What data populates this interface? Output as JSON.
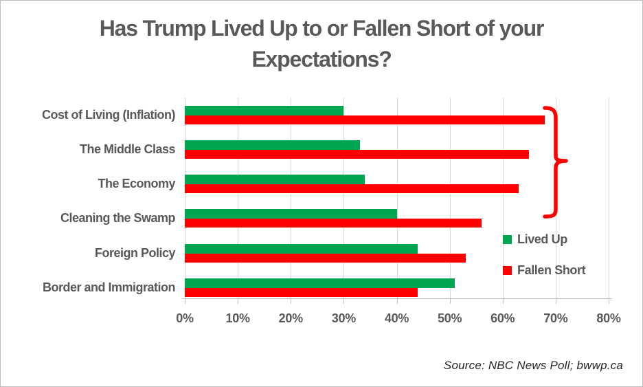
{
  "title": "Has Trump Lived Up to or Fallen Short of your Expectations?",
  "source_note": "Source: NBC News Poll; bwwp.ca",
  "colors": {
    "lived_up_green": "#00A651",
    "fallen_short_red": "#FF0000",
    "text_gray": "#595959",
    "gridline_gray": "#D9D9D9",
    "axis_gray": "#BFBFBF",
    "source_text": "#262626",
    "brace_red": "#FF0000"
  },
  "chart_data": {
    "type": "bar",
    "orientation": "horizontal",
    "title": "Has Trump Lived Up to or Fallen Short of your Expectations?",
    "categories": [
      "Cost of Living (Inflation)",
      "The Middle Class",
      "The Economy",
      "Cleaning the Swamp",
      "Foreign Policy",
      "Border and Immigration"
    ],
    "series": [
      {
        "name": "Lived Up",
        "color": "#00A651",
        "values": [
          30,
          33,
          34,
          40,
          44,
          51
        ]
      },
      {
        "name": "Fallen Short",
        "color": "#FF0000",
        "values": [
          68,
          65,
          63,
          56,
          53,
          44
        ]
      }
    ],
    "xlabel": "",
    "ylabel": "",
    "xlim": [
      0,
      80
    ],
    "xtick_labels": [
      "0%",
      "10%",
      "20%",
      "30%",
      "40%",
      "50%",
      "60%",
      "70%",
      "80%"
    ],
    "grid": "vertical-only",
    "legend_position": "middle-right",
    "annotations": [
      {
        "type": "right-curly-brace",
        "color": "#FF0000",
        "spans_categories": [
          "Cost of Living (Inflation)",
          "The Middle Class",
          "The Economy"
        ]
      }
    ]
  }
}
